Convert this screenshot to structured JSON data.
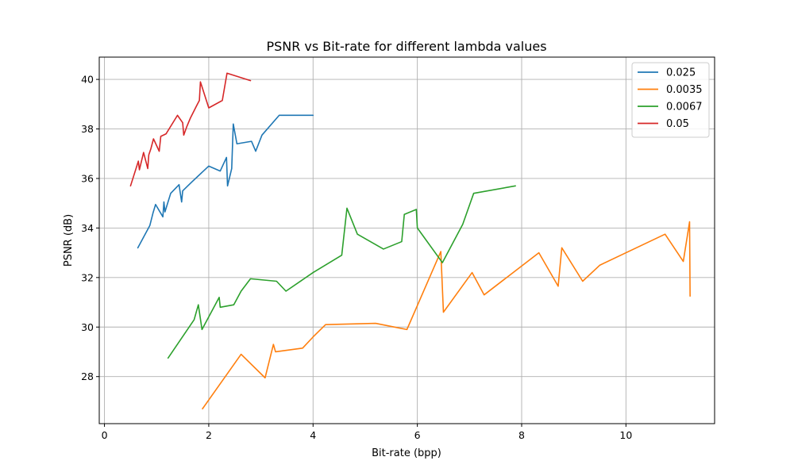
{
  "chart_data": {
    "type": "line",
    "title": "PSNR vs Bit-rate for different lambda values",
    "xlabel": "Bit-rate (bpp)",
    "ylabel": "PSNR (dB)",
    "xlim": [
      -0.1,
      11.7
    ],
    "ylim": [
      26.1,
      40.9
    ],
    "xticks": [
      0,
      2,
      4,
      6,
      8,
      10
    ],
    "yticks": [
      28,
      30,
      32,
      34,
      36,
      38,
      40
    ],
    "grid": true,
    "legend_position": "top-right",
    "series": [
      {
        "name": "0.025",
        "color": "#1f77b4",
        "x": [
          0.64,
          0.87,
          0.93,
          0.98,
          1.12,
          1.14,
          1.16,
          1.27,
          1.43,
          1.48,
          1.5,
          1.67,
          2.0,
          2.22,
          2.34,
          2.36,
          2.44,
          2.47,
          2.54,
          2.82,
          2.9,
          3.02,
          3.35,
          3.57,
          4.0
        ],
        "y": [
          33.2,
          34.1,
          34.6,
          34.95,
          34.45,
          35.05,
          34.65,
          35.4,
          35.75,
          35.05,
          35.5,
          35.85,
          36.5,
          36.3,
          36.85,
          35.7,
          36.4,
          38.2,
          37.4,
          37.5,
          37.1,
          37.75,
          38.55,
          38.55,
          38.55
        ]
      },
      {
        "name": "0.0035",
        "color": "#ff7f0e",
        "x": [
          1.88,
          2.62,
          3.08,
          3.24,
          3.28,
          3.8,
          4.0,
          4.24,
          5.2,
          5.8,
          6.45,
          6.5,
          7.05,
          7.28,
          8.33,
          8.7,
          8.77,
          9.17,
          9.5,
          10.75,
          11.1,
          11.22,
          11.23
        ],
        "y": [
          26.7,
          28.9,
          27.95,
          29.3,
          29.0,
          29.15,
          29.6,
          30.1,
          30.15,
          29.9,
          33.05,
          30.6,
          32.2,
          31.3,
          33.0,
          31.65,
          33.2,
          31.85,
          32.5,
          33.75,
          32.65,
          34.25,
          31.25
        ]
      },
      {
        "name": "0.0067",
        "color": "#2ca02c",
        "x": [
          1.22,
          1.72,
          1.8,
          1.87,
          2.2,
          2.22,
          2.48,
          2.62,
          2.8,
          3.3,
          3.48,
          4.0,
          4.55,
          4.65,
          4.85,
          5.35,
          5.7,
          5.75,
          5.98,
          6.0,
          6.48,
          6.87,
          7.08,
          7.88
        ],
        "y": [
          28.75,
          30.3,
          30.9,
          29.9,
          31.2,
          30.8,
          30.9,
          31.45,
          31.95,
          31.85,
          31.45,
          32.2,
          32.9,
          34.8,
          33.75,
          33.15,
          33.45,
          34.55,
          34.75,
          34.0,
          32.6,
          34.15,
          35.4,
          35.7
        ]
      },
      {
        "name": "0.05",
        "color": "#d62728",
        "x": [
          0.5,
          0.65,
          0.67,
          0.75,
          0.83,
          0.85,
          0.89,
          0.94,
          1.05,
          1.08,
          1.18,
          1.4,
          1.5,
          1.52,
          1.58,
          1.65,
          1.77,
          1.82,
          1.84,
          2.0,
          2.26,
          2.35,
          2.8
        ],
        "y": [
          35.7,
          36.7,
          36.35,
          37.05,
          36.4,
          36.95,
          37.2,
          37.6,
          37.1,
          37.7,
          37.8,
          38.55,
          38.25,
          37.75,
          38.1,
          38.45,
          38.95,
          39.15,
          39.9,
          38.85,
          39.15,
          40.25,
          39.95
        ]
      }
    ]
  }
}
